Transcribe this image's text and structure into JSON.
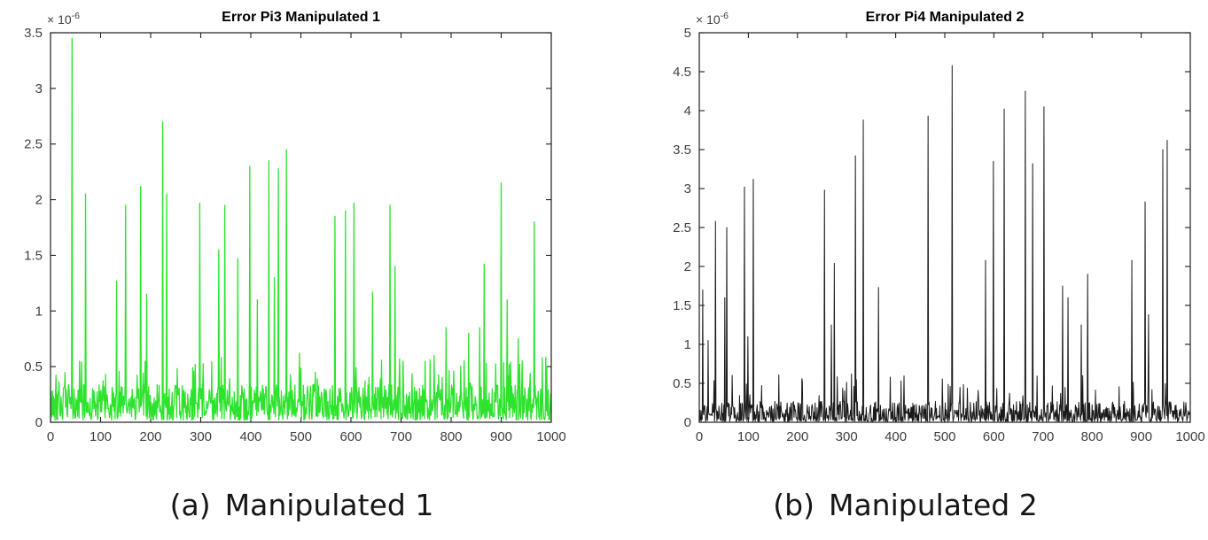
{
  "figure": {
    "captions": [
      {
        "index": "(a)",
        "label": "Manipulated 1"
      },
      {
        "index": "(b)",
        "label": "Manipulated 2"
      }
    ]
  },
  "chart_data": [
    {
      "type": "line",
      "title": "Error Pi3 Manipulated 1",
      "series_name": "Error Pi3",
      "color": "#2ee32e",
      "grid": false,
      "legend_position": "none",
      "xlim": [
        0,
        1000
      ],
      "x_ticks": [
        0,
        100,
        200,
        300,
        400,
        500,
        600,
        700,
        800,
        900,
        1000
      ],
      "ylim_times_1e6": [
        0,
        3.5
      ],
      "y_ticks_times_1e6": [
        0,
        0.5,
        1,
        1.5,
        2,
        2.5,
        3,
        3.5
      ],
      "y_exponent": {
        "base": "× 10",
        "power": "-6"
      },
      "noise_floor_times_1e6": [
        0.02,
        0.34
      ],
      "noise_shape": 1.4,
      "mini_spike_rate": 0.05,
      "mini_spike_range_times_1e6": [
        0.35,
        0.62
      ],
      "spikes_times_1e6": [
        [
          43,
          3.45
        ],
        [
          70,
          2.05
        ],
        [
          132,
          1.27
        ],
        [
          150,
          1.95
        ],
        [
          180,
          2.12
        ],
        [
          192,
          1.15
        ],
        [
          224,
          2.7
        ],
        [
          232,
          2.05
        ],
        [
          298,
          1.97
        ],
        [
          336,
          1.55
        ],
        [
          348,
          1.95
        ],
        [
          374,
          1.47
        ],
        [
          398,
          2.3
        ],
        [
          413,
          1.1
        ],
        [
          436,
          2.35
        ],
        [
          447,
          1.3
        ],
        [
          455,
          2.28
        ],
        [
          471,
          2.45
        ],
        [
          497,
          0.62
        ],
        [
          568,
          1.85
        ],
        [
          589,
          1.9
        ],
        [
          606,
          1.97
        ],
        [
          643,
          1.17
        ],
        [
          678,
          1.95
        ],
        [
          688,
          1.4
        ],
        [
          704,
          0.55
        ],
        [
          790,
          0.85
        ],
        [
          835,
          0.8
        ],
        [
          857,
          0.85
        ],
        [
          866,
          1.42
        ],
        [
          900,
          2.15
        ],
        [
          912,
          1.1
        ],
        [
          934,
          0.75
        ],
        [
          966,
          1.8
        ]
      ]
    },
    {
      "type": "line",
      "title": "Error Pi4 Manipulated 2",
      "series_name": "Error Pi4",
      "color": "#1a1a1a",
      "grid": false,
      "legend_position": "none",
      "xlim": [
        0,
        1000
      ],
      "x_ticks": [
        0,
        100,
        200,
        300,
        400,
        500,
        600,
        700,
        800,
        900,
        1000
      ],
      "ylim_times_1e6": [
        0,
        5
      ],
      "y_ticks_times_1e6": [
        0,
        0.5,
        1,
        1.5,
        2,
        2.5,
        3,
        3.5,
        4,
        4.5,
        5
      ],
      "y_exponent": {
        "base": "× 10",
        "power": "-6"
      },
      "noise_floor_times_1e6": [
        0.01,
        0.27
      ],
      "noise_shape": 1.8,
      "mini_spike_rate": 0.05,
      "mini_spike_range_times_1e6": [
        0.3,
        0.62
      ],
      "spikes_times_1e6": [
        [
          7,
          1.7
        ],
        [
          18,
          1.05
        ],
        [
          33,
          2.58
        ],
        [
          52,
          1.6
        ],
        [
          56,
          2.5
        ],
        [
          92,
          3.02
        ],
        [
          99,
          1.1
        ],
        [
          110,
          3.12
        ],
        [
          255,
          2.98
        ],
        [
          269,
          1.25
        ],
        [
          275,
          2.04
        ],
        [
          318,
          3.42
        ],
        [
          334,
          3.88
        ],
        [
          365,
          1.73
        ],
        [
          466,
          3.93
        ],
        [
          515,
          4.58
        ],
        [
          583,
          2.08
        ],
        [
          599,
          3.35
        ],
        [
          621,
          4.02
        ],
        [
          664,
          4.25
        ],
        [
          679,
          3.32
        ],
        [
          702,
          4.05
        ],
        [
          740,
          1.75
        ],
        [
          751,
          1.6
        ],
        [
          778,
          1.25
        ],
        [
          791,
          1.9
        ],
        [
          881,
          2.08
        ],
        [
          908,
          2.83
        ],
        [
          915,
          1.38
        ],
        [
          944,
          3.5
        ],
        [
          953,
          3.62
        ]
      ]
    }
  ]
}
